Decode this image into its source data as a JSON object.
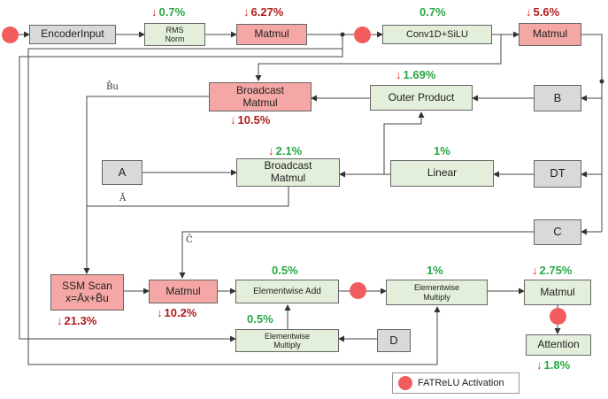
{
  "nodes": {
    "encoder_input": "EncoderInput",
    "rms_norm": [
      "RMS",
      "Norm"
    ],
    "matmul_1": "Matmul",
    "conv1d_silu": "Conv1D+SiLU",
    "matmul_2": "Matmul",
    "broadcast_matmul_1": [
      "Broadcast",
      "Matmul"
    ],
    "outer_product": "Outer Product",
    "b": "B",
    "a": "A",
    "broadcast_matmul_2": [
      "Broadcast",
      "Matmul"
    ],
    "linear": "Linear",
    "dt": "DT",
    "c": "C",
    "ssm_scan": [
      "SSM Scan",
      "x=Āx+B̄u"
    ],
    "matmul_3": "Matmul",
    "elementwise_add": "Elementwise Add",
    "elementwise_multiply_1": [
      "Elementwise",
      "Multiply"
    ],
    "matmul_4": "Matmul",
    "elementwise_multiply_2": [
      "Elementwise",
      "Multiply"
    ],
    "d": "D",
    "attention": "Attention"
  },
  "percentages": {
    "rms_norm": {
      "arrow": true,
      "value": "0.7%",
      "trend": "good"
    },
    "matmul_1": {
      "arrow": true,
      "value": "6.27%",
      "trend": "bad"
    },
    "conv1d_silu": {
      "arrow": false,
      "value": "0.7%",
      "trend": "good"
    },
    "matmul_2": {
      "arrow": true,
      "value": "5.6%",
      "trend": "bad"
    },
    "outer_product": {
      "arrow": true,
      "value": "1.69%",
      "trend": "good"
    },
    "broadcast_matmul_1": {
      "arrow": true,
      "value": "10.5%",
      "trend": "bad"
    },
    "broadcast_matmul_2": {
      "arrow": true,
      "value": "2.1%",
      "trend": "good"
    },
    "linear": {
      "arrow": false,
      "value": "1%",
      "trend": "good"
    },
    "elementwise_add": {
      "arrow": false,
      "value": "0.5%",
      "trend": "good"
    },
    "elementwise_multiply_1": {
      "arrow": false,
      "value": "1%",
      "trend": "good"
    },
    "matmul_4": {
      "arrow": true,
      "value": "2.75%",
      "trend": "good"
    },
    "ssm_scan": {
      "arrow": true,
      "value": "21.3%",
      "trend": "bad"
    },
    "matmul_3": {
      "arrow": true,
      "value": "10.2%",
      "trend": "bad"
    },
    "elementwise_multiply_2": {
      "arrow": false,
      "value": "0.5%",
      "trend": "good"
    },
    "attention": {
      "arrow": true,
      "value": "1.8%",
      "trend": "good"
    }
  },
  "edge_labels": {
    "bar_bu": "B̄u",
    "bar_a": "Ā",
    "bar_c": "C̄"
  },
  "legend": {
    "label": "FATReLU Activation"
  },
  "colors": {
    "activation_dot": "#f25c5c",
    "improve": "#27a844",
    "regress": "#b01c1c",
    "down_arrow": "#d9261c"
  }
}
